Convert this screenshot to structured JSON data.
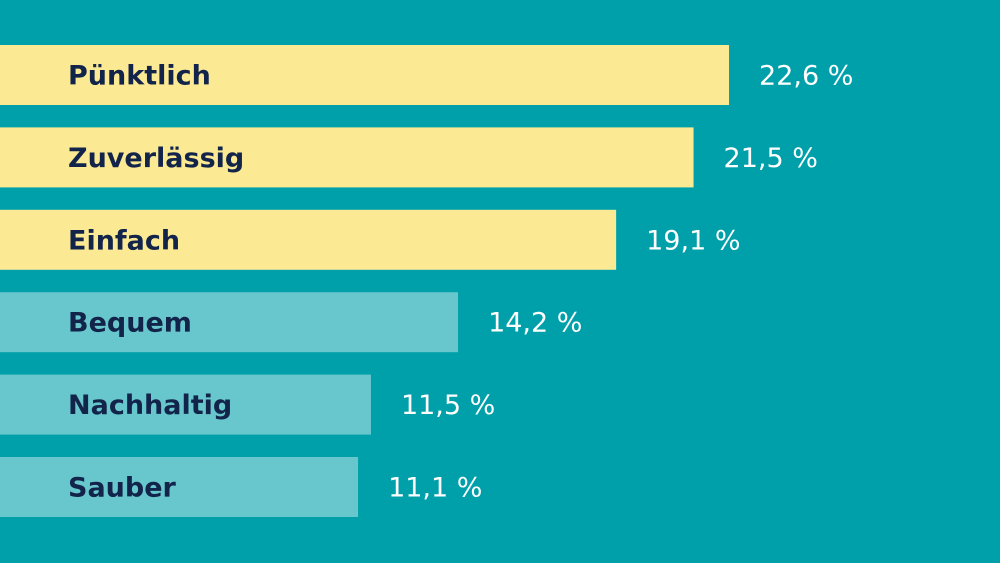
{
  "chart_data": {
    "type": "bar",
    "orientation": "horizontal",
    "categories": [
      "Pünktlich",
      "Zuverlässig",
      "Einfach",
      "Bequem",
      "Nachhaltig",
      "Sauber"
    ],
    "values": [
      22.6,
      21.5,
      19.1,
      14.2,
      11.5,
      11.1
    ],
    "value_labels": [
      "22,6 %",
      "21,5 %",
      "19,1 %",
      "14,2 %",
      "11,5 %",
      "11,1 %"
    ],
    "colors": [
      "#fbea93",
      "#fbea93",
      "#fbea93",
      "#67c7cd",
      "#67c7cd",
      "#67c7cd"
    ],
    "background": "#00a0aa",
    "xlim": [
      0,
      31
    ]
  }
}
